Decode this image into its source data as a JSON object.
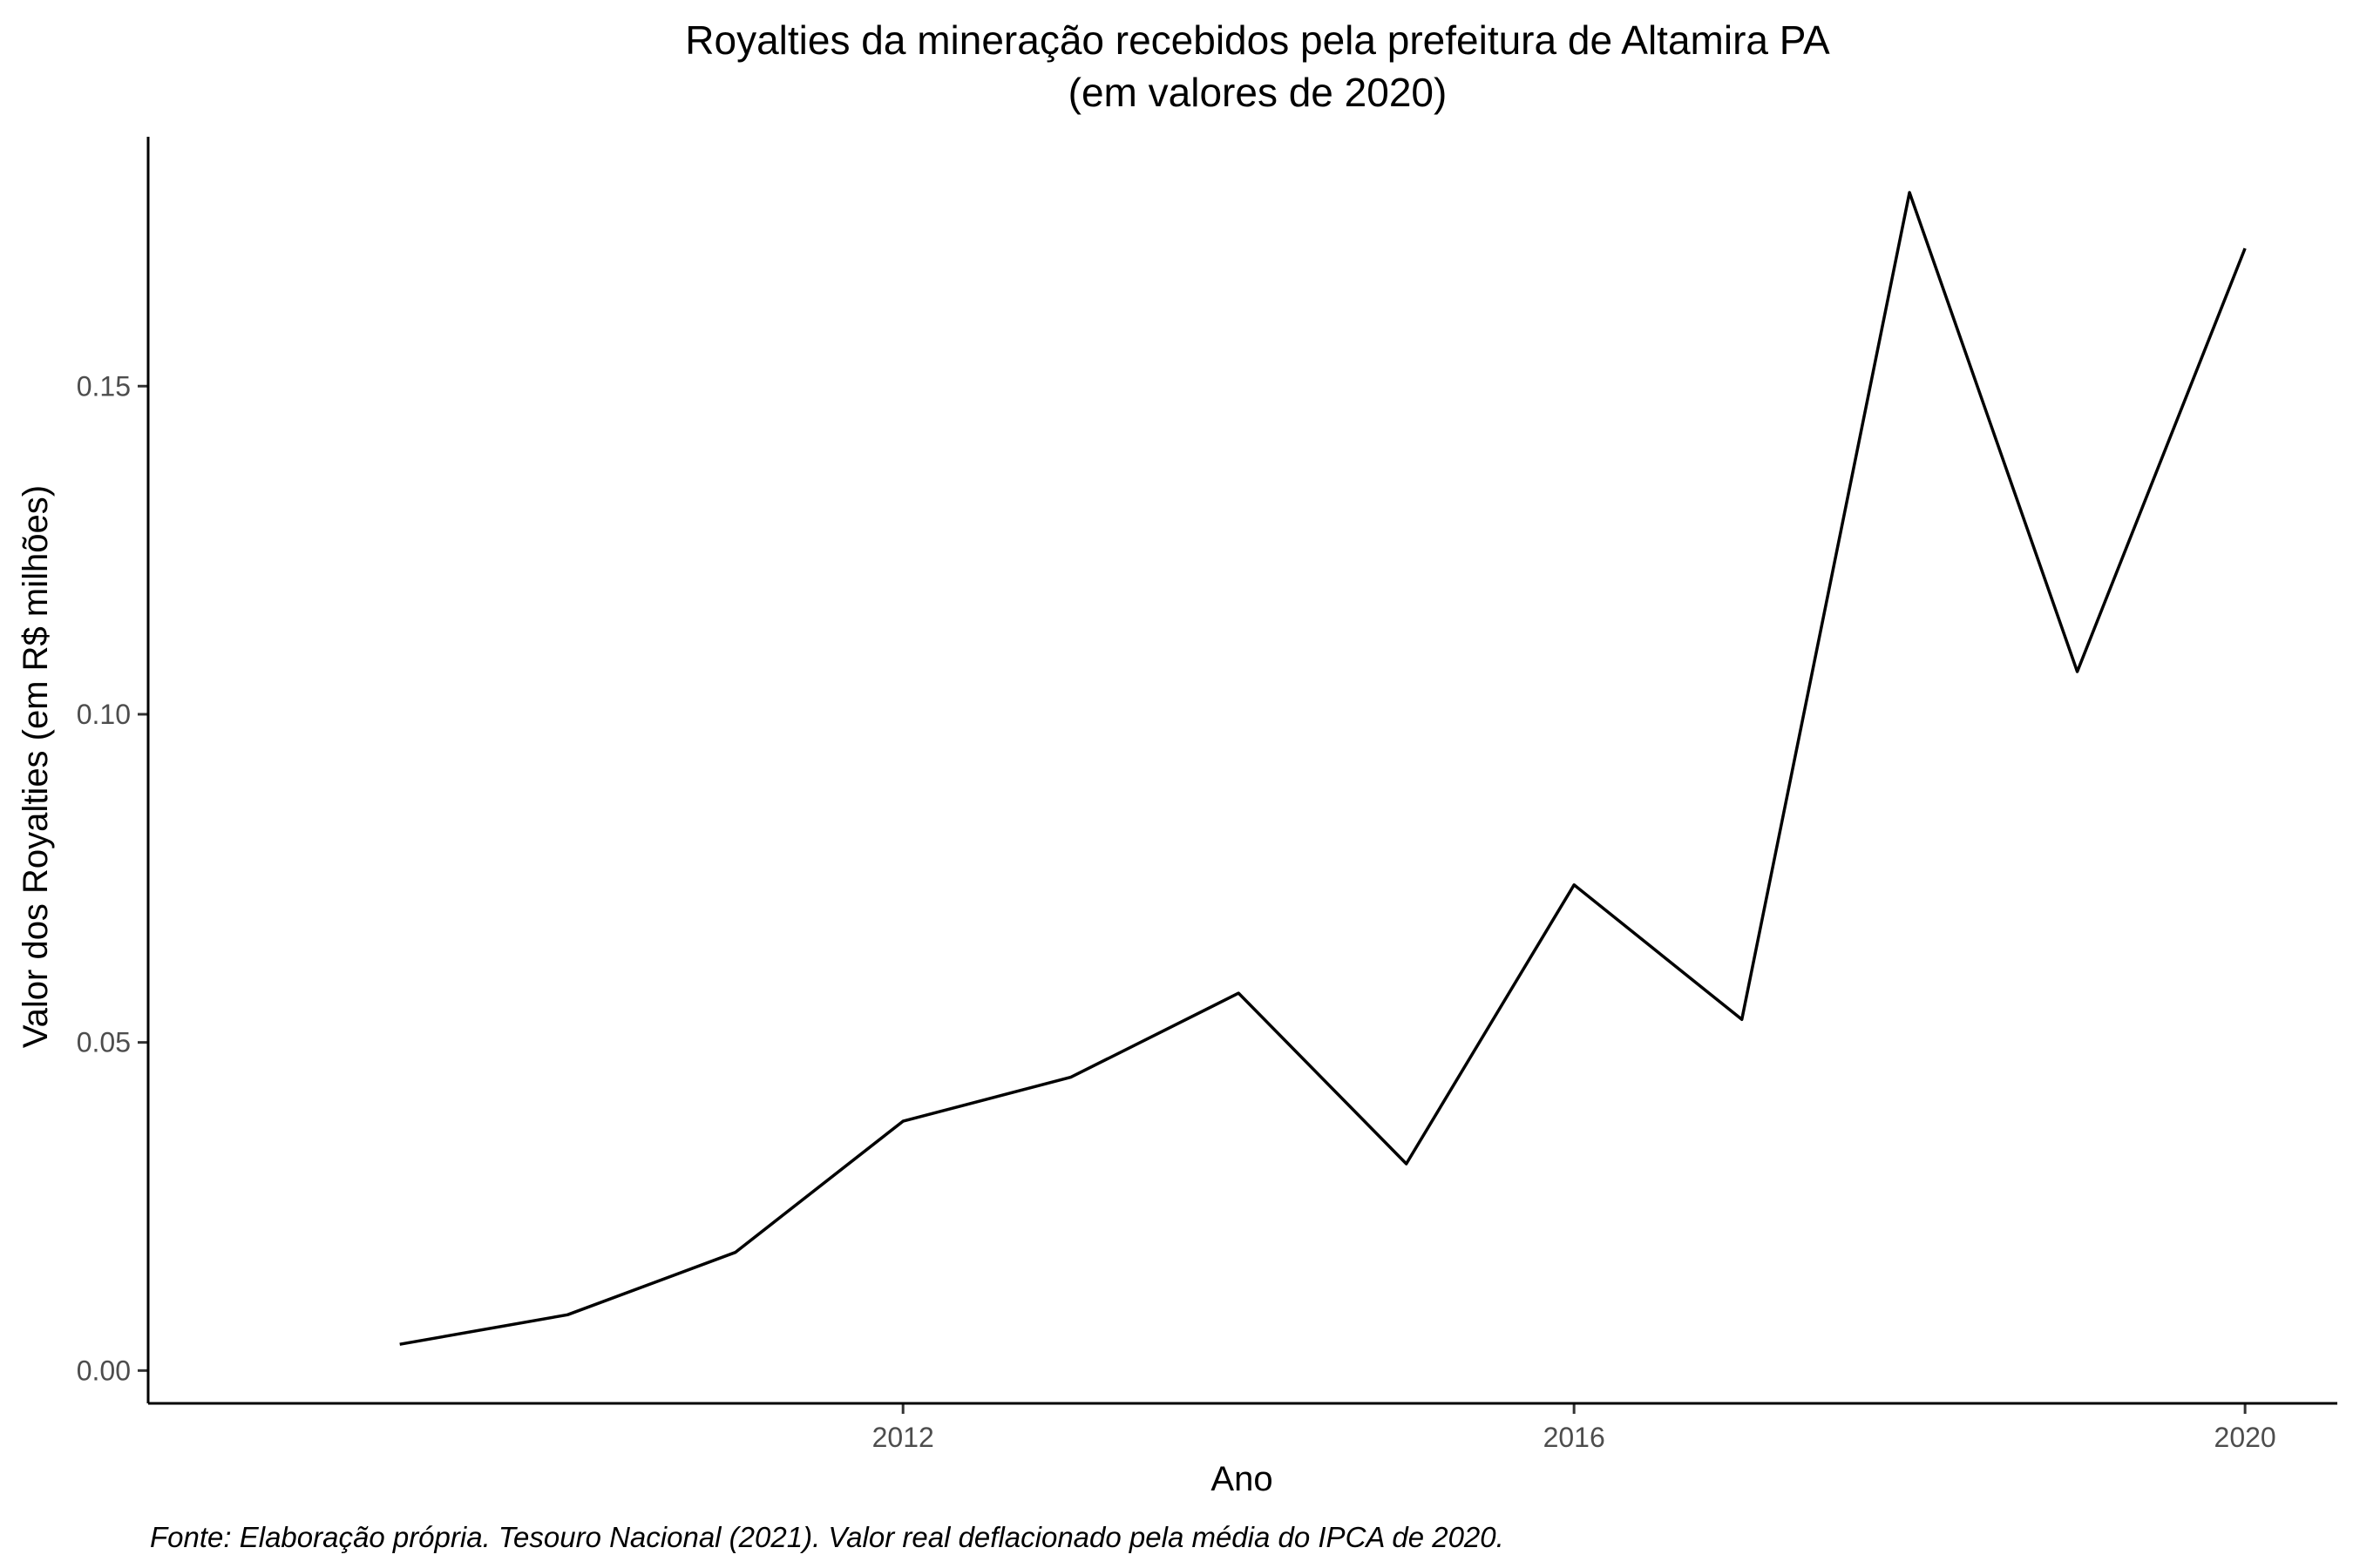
{
  "chart_data": {
    "type": "line",
    "title": "Royalties da mineração recebidos pela prefeitura de Altamira PA",
    "subtitle": "(em valores de 2020)",
    "xlabel": "Ano",
    "ylabel": "Valor dos Royalties (em R$ milhões)",
    "caption": "Fonte: Elaboração própria. Tesouro Nacional (2021). Valor real deflacionado pela média do IPCA de 2020.",
    "x": [
      2009,
      2010,
      2011,
      2012,
      2013,
      2014,
      2015,
      2016,
      2017,
      2018,
      2019,
      2020
    ],
    "series": [
      {
        "values": [
          0.004,
          0.0085,
          0.018,
          0.038,
          0.0447,
          0.0575,
          0.0315,
          0.074,
          0.0535,
          0.1795,
          0.1065,
          0.171
        ]
      }
    ],
    "xlim": [
      2007.5,
      2020.55
    ],
    "ylim": [
      -0.005,
      0.188
    ],
    "xticks": [
      2012,
      2016,
      2020
    ],
    "xtick_labels": [
      "2012",
      "2016",
      "2020"
    ],
    "yticks": [
      0,
      0.05,
      0.1,
      0.15
    ],
    "ytick_labels": [
      "0.00",
      "0.05",
      "0.10",
      "0.15"
    ],
    "grid": false,
    "line_color": "#000000"
  }
}
